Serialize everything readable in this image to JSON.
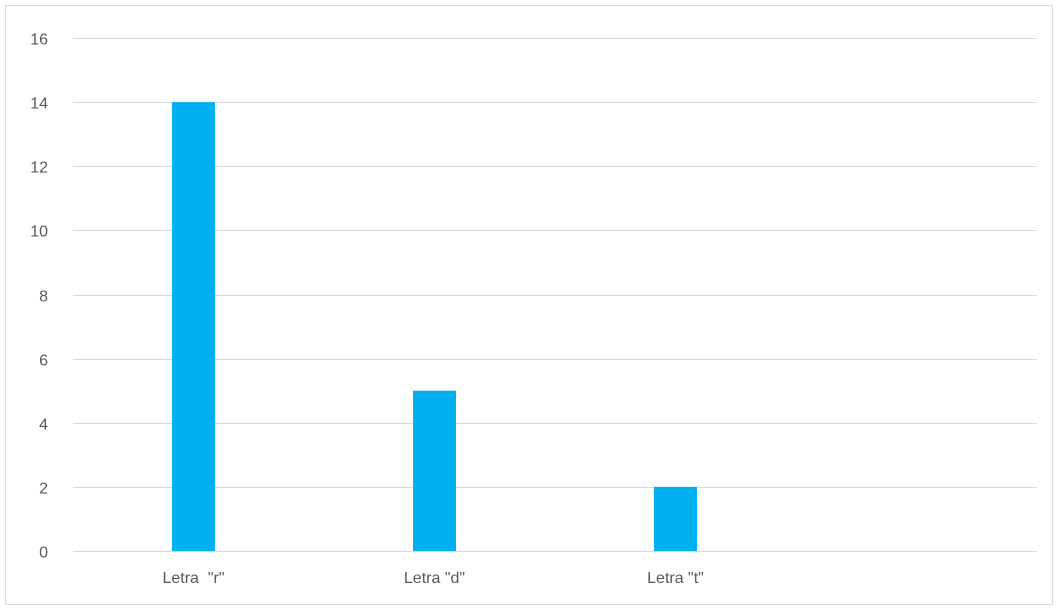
{
  "chart_data": {
    "type": "bar",
    "categories": [
      "Letra  \"r\"",
      "Letra \"d\"",
      "Letra \"t\"",
      ""
    ],
    "values": [
      14,
      5,
      2,
      null
    ],
    "title": "",
    "xlabel": "",
    "ylabel": "",
    "ylim": [
      0,
      16
    ],
    "yticks": [
      0,
      2,
      4,
      6,
      8,
      10,
      12,
      14,
      16
    ],
    "grid": true,
    "legend": "none",
    "bar_color": "#00b0f0",
    "grid_color": "#d9d9d9"
  }
}
